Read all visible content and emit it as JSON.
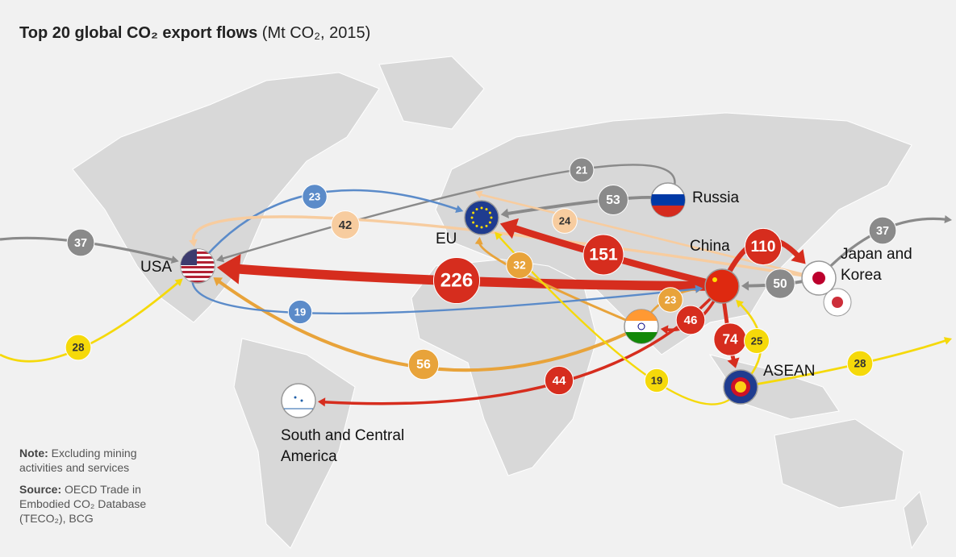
{
  "header": {
    "title": "Top 20 global CO₂ export flows",
    "subtitle": "(Mt CO₂, 2015)"
  },
  "regions": [
    "USA",
    "EU",
    "Russia",
    "China",
    "Japan and Korea",
    "India",
    "ASEAN",
    "South and Central America"
  ],
  "flows": [
    {
      "from": "Russia",
      "to": "USA",
      "value": 21,
      "color": "#8a8a8a"
    },
    {
      "from": "Russia",
      "to": "EU",
      "value": 53,
      "color": "#8a8a8a"
    },
    {
      "from": "USA",
      "to": "EU",
      "value": 23,
      "color": "#5b8bc9"
    },
    {
      "from": "Japan and Korea",
      "to": "USA",
      "value": 42,
      "color": "#f7cc9f"
    },
    {
      "from": "Japan and Korea",
      "to": "EU",
      "value": 24,
      "color": "#f7cc9f"
    },
    {
      "from": "China",
      "to": "EU",
      "value": 151,
      "color": "#d62d1e"
    },
    {
      "from": "China",
      "to": "USA",
      "value": 226,
      "color": "#d62d1e"
    },
    {
      "from": "China",
      "to": "Japan and Korea",
      "value": 110,
      "color": "#d62d1e"
    },
    {
      "from": "Japan and Korea",
      "to": "China",
      "value": 50,
      "color": "#8a8a8a"
    },
    {
      "from": "Japan and Korea",
      "to": "USA",
      "value": 37,
      "color": "#8a8a8a"
    },
    {
      "from": "India",
      "to": "EU",
      "value": 32,
      "color": "#e8a33a"
    },
    {
      "from": "India",
      "to": "USA",
      "value": 56,
      "color": "#e8a33a"
    },
    {
      "from": "India",
      "to": "China",
      "value": 23,
      "color": "#e8a33a"
    },
    {
      "from": "China",
      "to": "India",
      "value": 46,
      "color": "#d62d1e"
    },
    {
      "from": "China",
      "to": "ASEAN",
      "value": 74,
      "color": "#d62d1e"
    },
    {
      "from": "China",
      "to": "South and Central America",
      "value": 44,
      "color": "#d62d1e"
    },
    {
      "from": "USA",
      "to": "China",
      "value": 19,
      "color": "#5b8bc9"
    },
    {
      "from": "ASEAN",
      "to": "EU",
      "value": 19,
      "color": "#f5d90a"
    },
    {
      "from": "ASEAN",
      "to": "China",
      "value": 25,
      "color": "#f5d90a"
    },
    {
      "from": "ASEAN",
      "to": "USA",
      "value": 28,
      "color": "#f5d90a"
    }
  ],
  "note": {
    "label": "Note:",
    "text": "Excluding mining activities and services"
  },
  "source": {
    "label": "Source:",
    "text": "OECD Trade in Embodied CO₂ Database (TECO₂), BCG"
  }
}
